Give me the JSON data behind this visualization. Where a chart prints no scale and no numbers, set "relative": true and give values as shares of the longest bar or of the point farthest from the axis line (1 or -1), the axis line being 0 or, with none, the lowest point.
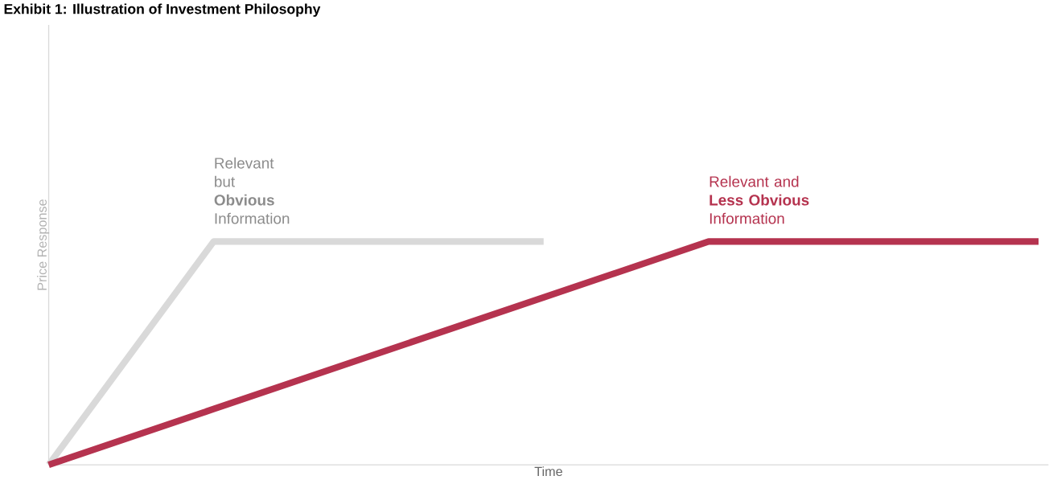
{
  "chart_data": {
    "type": "line",
    "title": "Exhibit 1: Illustration of Investment Philosophy",
    "xlabel": "Time",
    "ylabel": "Price Response",
    "relative": true,
    "categories": [
      null,
      null,
      null,
      null,
      null,
      null,
      null
    ],
    "series": [
      {
        "color": "#d9d9d9",
        "values": [
          0,
          1,
          1,
          1,
          null,
          null,
          null
        ]
      },
      {
        "color": "#b5334f",
        "values": [
          0,
          0.25,
          0.5,
          0.75,
          1,
          1,
          1
        ]
      }
    ],
    "annotations": [
      "Relevant but **Obvious** Information",
      "Relevant and **Less Obvious** Information"
    ],
    "marker": "none",
    "line_style": "solid"
  }
}
